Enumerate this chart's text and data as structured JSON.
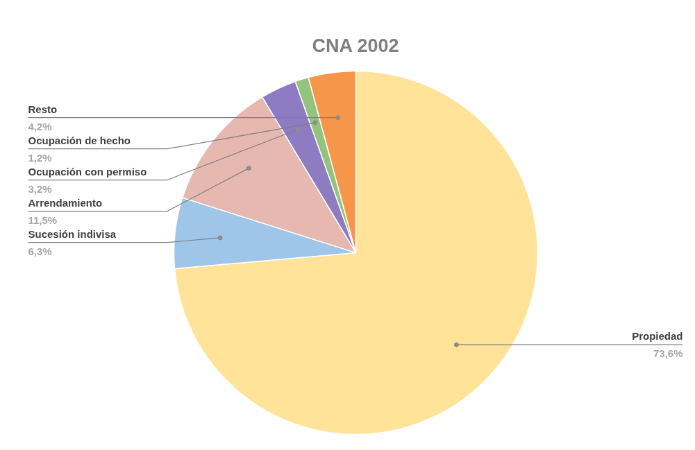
{
  "chart_data": {
    "type": "pie",
    "title": "CNA 2002",
    "categories": [
      "Propiedad",
      "Sucesión indivisa",
      "Arrendamiento",
      "Ocupación con permiso",
      "Ocupación de hecho",
      "Resto"
    ],
    "values": [
      73.6,
      6.3,
      11.5,
      3.2,
      1.2,
      4.2
    ],
    "value_labels": [
      "73,6%",
      "6,3%",
      "11,5%",
      "3,2%",
      "1,2%",
      "4,2%"
    ],
    "colors": [
      "#fee399",
      "#9fc5e8",
      "#e6b8af",
      "#8e7cc3",
      "#93c47d",
      "#f6964a"
    ]
  }
}
